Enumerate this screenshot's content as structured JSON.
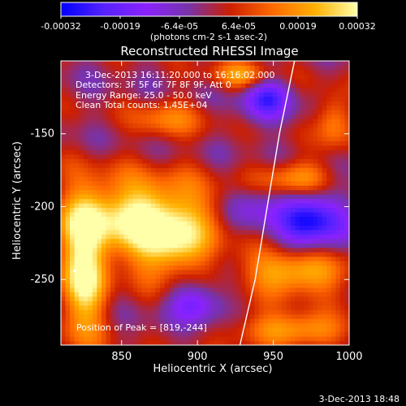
{
  "chart_data": {
    "type": "heatmap",
    "title": "Reconstructed RHESSI Image",
    "xlabel": "Heliocentric X (arcsec)",
    "ylabel": "Heliocentric Y (arcsec)",
    "xlim": [
      810,
      1000
    ],
    "ylim": [
      -295,
      -100
    ],
    "x_ticks": [
      "850",
      "900",
      "950",
      "1000"
    ],
    "y_ticks": [
      "-150",
      "-200",
      "-250"
    ],
    "grid": false,
    "colorbar": {
      "position": "top",
      "ticks": [
        "-0.00032",
        "-0.00019",
        "-6.4e-05",
        "6.4e-05",
        "0.00019",
        "0.00032"
      ],
      "label": "(photons cm-2 s-1 asec-2)",
      "range": [
        -0.00032,
        0.00032
      ],
      "colors": [
        "#0000ff",
        "#5522ff",
        "#8a22ff",
        "#7733aa",
        "#cc1f00",
        "#ff6a00",
        "#ffb000",
        "#ffffaa"
      ]
    },
    "info_lines": [
      "3-Dec-2013 16:11:20.000 to 16:16:02.000",
      "Detectors: 3F 5F 6F 7F 8F 9F, Att 0",
      "Energy Range: 25.0 - 50.0 keV",
      "Clean     Total counts: 1.45E+04"
    ],
    "peak": {
      "label": "Position of Peak = [819,-244]",
      "x": 819,
      "y": -244
    },
    "limb_curve": [
      {
        "x": 928,
        "y": -295
      },
      {
        "x": 938,
        "y": -250
      },
      {
        "x": 946,
        "y": -200
      },
      {
        "x": 954,
        "y": -150
      },
      {
        "x": 964,
        "y": -100
      }
    ],
    "hot_regions": [
      {
        "x": 865,
        "y": -205,
        "intensity": 1.0,
        "rx": 48,
        "ry": 26
      },
      {
        "x": 825,
        "y": -245,
        "intensity": 1.0,
        "rx": 16,
        "ry": 48
      },
      {
        "x": 880,
        "y": -230,
        "intensity": 0.65,
        "rx": 26,
        "ry": 22
      },
      {
        "x": 965,
        "y": -245,
        "intensity": 0.85,
        "rx": 36,
        "ry": 16
      },
      {
        "x": 962,
        "y": -285,
        "intensity": 0.7,
        "rx": 40,
        "ry": 12
      },
      {
        "x": 880,
        "y": -140,
        "intensity": 0.45,
        "rx": 24,
        "ry": 14
      },
      {
        "x": 965,
        "y": -180,
        "intensity": 0.65,
        "rx": 26,
        "ry": 12
      },
      {
        "x": 990,
        "y": -140,
        "intensity": 0.55,
        "rx": 12,
        "ry": 20
      },
      {
        "x": 930,
        "y": -110,
        "intensity": 0.6,
        "rx": 22,
        "ry": 10
      }
    ],
    "cold_regions": [
      {
        "x": 975,
        "y": -210,
        "intensity": -0.9,
        "rx": 22,
        "ry": 22
      },
      {
        "x": 945,
        "y": -125,
        "intensity": -0.7,
        "rx": 16,
        "ry": 16
      },
      {
        "x": 900,
        "y": -265,
        "intensity": -0.6,
        "rx": 18,
        "ry": 14
      },
      {
        "x": 935,
        "y": -200,
        "intensity": -0.4,
        "rx": 18,
        "ry": 18
      }
    ]
  },
  "footer": {
    "timestamp": "3-Dec-2013 18:48"
  }
}
